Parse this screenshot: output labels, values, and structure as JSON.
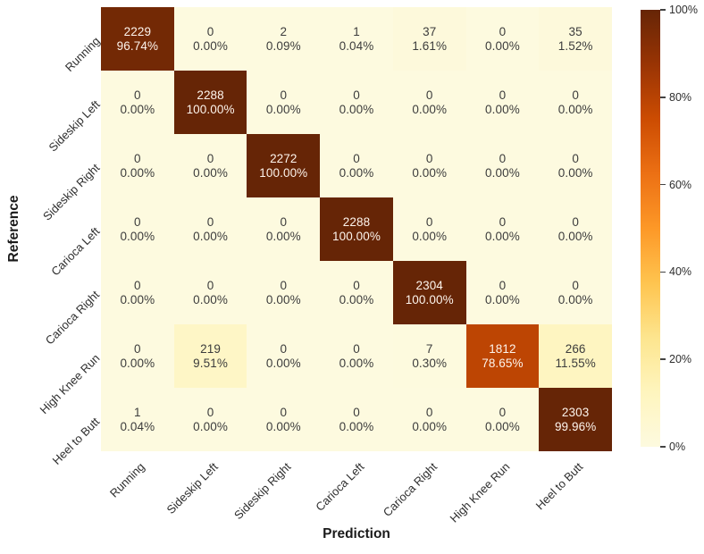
{
  "chart_data": {
    "type": "heatmap",
    "title": "",
    "xlabel": "Prediction",
    "ylabel": "Reference",
    "categories": [
      "Running",
      "Sideskip Left",
      "Sideskip Right",
      "Carioca Left",
      "Carioca Right",
      "High Knee Run",
      "Heel to Butt"
    ],
    "rows": [
      {
        "label": "Running",
        "cells": [
          {
            "count": "2229",
            "pct": "96.74%",
            "value": 96.74
          },
          {
            "count": "0",
            "pct": "0.00%",
            "value": 0
          },
          {
            "count": "2",
            "pct": "0.09%",
            "value": 0.09
          },
          {
            "count": "1",
            "pct": "0.04%",
            "value": 0.04
          },
          {
            "count": "37",
            "pct": "1.61%",
            "value": 1.61
          },
          {
            "count": "0",
            "pct": "0.00%",
            "value": 0
          },
          {
            "count": "35",
            "pct": "1.52%",
            "value": 1.52
          }
        ]
      },
      {
        "label": "Sideskip Left",
        "cells": [
          {
            "count": "0",
            "pct": "0.00%",
            "value": 0
          },
          {
            "count": "2288",
            "pct": "100.00%",
            "value": 100
          },
          {
            "count": "0",
            "pct": "0.00%",
            "value": 0
          },
          {
            "count": "0",
            "pct": "0.00%",
            "value": 0
          },
          {
            "count": "0",
            "pct": "0.00%",
            "value": 0
          },
          {
            "count": "0",
            "pct": "0.00%",
            "value": 0
          },
          {
            "count": "0",
            "pct": "0.00%",
            "value": 0
          }
        ]
      },
      {
        "label": "Sideskip Right",
        "cells": [
          {
            "count": "0",
            "pct": "0.00%",
            "value": 0
          },
          {
            "count": "0",
            "pct": "0.00%",
            "value": 0
          },
          {
            "count": "2272",
            "pct": "100.00%",
            "value": 100
          },
          {
            "count": "0",
            "pct": "0.00%",
            "value": 0
          },
          {
            "count": "0",
            "pct": "0.00%",
            "value": 0
          },
          {
            "count": "0",
            "pct": "0.00%",
            "value": 0
          },
          {
            "count": "0",
            "pct": "0.00%",
            "value": 0
          }
        ]
      },
      {
        "label": "Carioca Left",
        "cells": [
          {
            "count": "0",
            "pct": "0.00%",
            "value": 0
          },
          {
            "count": "0",
            "pct": "0.00%",
            "value": 0
          },
          {
            "count": "0",
            "pct": "0.00%",
            "value": 0
          },
          {
            "count": "2288",
            "pct": "100.00%",
            "value": 100
          },
          {
            "count": "0",
            "pct": "0.00%",
            "value": 0
          },
          {
            "count": "0",
            "pct": "0.00%",
            "value": 0
          },
          {
            "count": "0",
            "pct": "0.00%",
            "value": 0
          }
        ]
      },
      {
        "label": "Carioca Right",
        "cells": [
          {
            "count": "0",
            "pct": "0.00%",
            "value": 0
          },
          {
            "count": "0",
            "pct": "0.00%",
            "value": 0
          },
          {
            "count": "0",
            "pct": "0.00%",
            "value": 0
          },
          {
            "count": "0",
            "pct": "0.00%",
            "value": 0
          },
          {
            "count": "2304",
            "pct": "100.00%",
            "value": 100
          },
          {
            "count": "0",
            "pct": "0.00%",
            "value": 0
          },
          {
            "count": "0",
            "pct": "0.00%",
            "value": 0
          }
        ]
      },
      {
        "label": "High Knee Run",
        "cells": [
          {
            "count": "0",
            "pct": "0.00%",
            "value": 0
          },
          {
            "count": "219",
            "pct": "9.51%",
            "value": 9.51
          },
          {
            "count": "0",
            "pct": "0.00%",
            "value": 0
          },
          {
            "count": "0",
            "pct": "0.00%",
            "value": 0
          },
          {
            "count": "7",
            "pct": "0.30%",
            "value": 0.3
          },
          {
            "count": "1812",
            "pct": "78.65%",
            "value": 78.65
          },
          {
            "count": "266",
            "pct": "11.55%",
            "value": 11.55
          }
        ]
      },
      {
        "label": "Heel to Butt",
        "cells": [
          {
            "count": "1",
            "pct": "0.04%",
            "value": 0.04
          },
          {
            "count": "0",
            "pct": "0.00%",
            "value": 0
          },
          {
            "count": "0",
            "pct": "0.00%",
            "value": 0
          },
          {
            "count": "0",
            "pct": "0.00%",
            "value": 0
          },
          {
            "count": "0",
            "pct": "0.00%",
            "value": 0
          },
          {
            "count": "0",
            "pct": "0.00%",
            "value": 0
          },
          {
            "count": "2303",
            "pct": "99.96%",
            "value": 99.96
          }
        ]
      }
    ],
    "colormap_stops": [
      "#FDFADF",
      "#FEF5BE",
      "#FDE58E",
      "#FEC44F",
      "#FD9827",
      "#EC7014",
      "#CC4C02",
      "#993404",
      "#662506"
    ],
    "cell_text_dark": "#3c3c3c",
    "cell_text_light": "#fdf4ec",
    "colorbar": {
      "min": 0,
      "max": 100,
      "ticks": [
        {
          "label": "100%",
          "value": 100
        },
        {
          "label": "80%",
          "value": 80
        },
        {
          "label": "60%",
          "value": 60
        },
        {
          "label": "40%",
          "value": 40
        },
        {
          "label": "20%",
          "value": 20
        },
        {
          "label": "0%",
          "value": 0
        }
      ]
    },
    "legend_position": "right",
    "grid": false
  }
}
